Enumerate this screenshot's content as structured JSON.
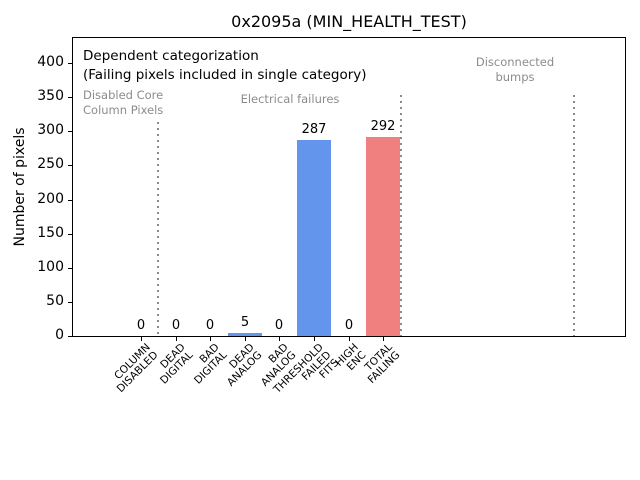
{
  "chart_data": {
    "type": "bar",
    "title": "0x2095a (MIN_HEALTH_TEST)",
    "ylabel": "Number of pixels",
    "xlabel": "",
    "ylim": [
      0,
      437
    ],
    "xlim": [
      -2,
      14
    ],
    "grid": false,
    "legend": null,
    "yticks": [
      0,
      50,
      100,
      150,
      200,
      250,
      300,
      350,
      400
    ],
    "categories": [
      [
        "COLUMN",
        "DISABLED"
      ],
      [
        "DEAD",
        "DIGITAL"
      ],
      [
        "BAD",
        "DIGITAL"
      ],
      [
        "DEAD",
        "ANALOG"
      ],
      [
        "BAD",
        "ANALOG"
      ],
      [
        "THRESHOLD",
        "FAILED",
        "FITS"
      ],
      [
        "HIGH",
        "ENC"
      ],
      [
        "TOTAL",
        "FAILING"
      ]
    ],
    "values": [
      0,
      0,
      0,
      5,
      0,
      287,
      0,
      292
    ],
    "bar_value_labels": [
      "0",
      "0",
      "0",
      "5",
      "0",
      "287",
      "0",
      "292"
    ],
    "bar_colors": [
      "#6495ED",
      "#6495ED",
      "#6495ED",
      "#6495ED",
      "#6495ED",
      "#6495ED",
      "#6495ED",
      "#F08080"
    ],
    "separators_x_data": [
      0.5,
      7.5,
      12.5
    ],
    "separator_color": "#8a8a8a",
    "region_label_color": "#8c8c8c",
    "annotations": {
      "note_line1": "Dependent categorization",
      "note_line2": "(Failing pixels included in single category)",
      "region_disabled_1": "Disabled Core",
      "region_disabled_2": "Column Pixels",
      "region_electrical": "Electrical failures",
      "region_disconnected_1": "Disconnected",
      "region_disconnected_2": "bumps"
    }
  }
}
